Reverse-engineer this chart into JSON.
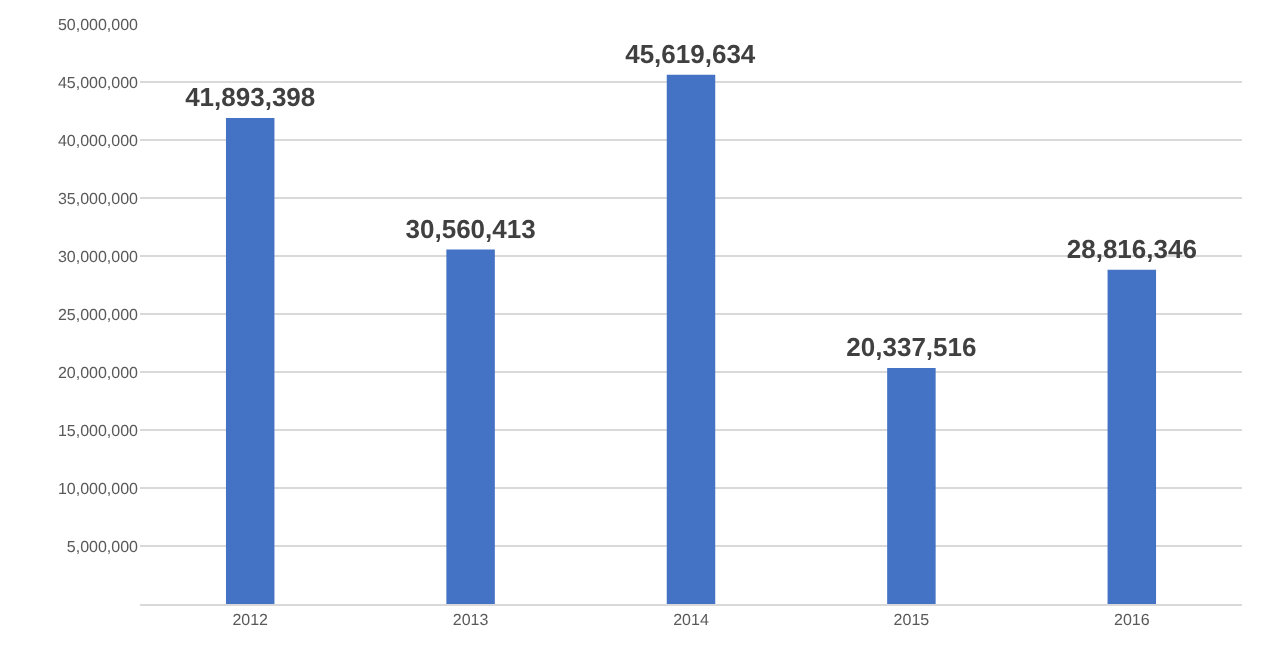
{
  "chart_data": {
    "type": "bar",
    "categories": [
      "2012",
      "2013",
      "2014",
      "2015",
      "2016"
    ],
    "values": [
      41893398,
      30560413,
      45619634,
      20337516,
      28816346
    ],
    "value_labels": [
      "41,893,398",
      "30,560,413",
      "45,619,634",
      "20,337,516",
      "28,816,346"
    ],
    "color": "#4472c4",
    "grid": "y",
    "ylim": [
      0,
      50000000
    ],
    "yticks": [
      {
        "value": 5000000,
        "label": "5,000,000"
      },
      {
        "value": 10000000,
        "label": "10,000,000"
      },
      {
        "value": 15000000,
        "label": "15,000,000"
      },
      {
        "value": 20000000,
        "label": "20,000,000"
      },
      {
        "value": 25000000,
        "label": "25,000,000"
      },
      {
        "value": 30000000,
        "label": "30,000,000"
      },
      {
        "value": 35000000,
        "label": "35,000,000"
      },
      {
        "value": 40000000,
        "label": "40,000,000"
      },
      {
        "value": 45000000,
        "label": "45,000,000"
      },
      {
        "value": 50000000,
        "label": "50,000,000"
      }
    ]
  }
}
